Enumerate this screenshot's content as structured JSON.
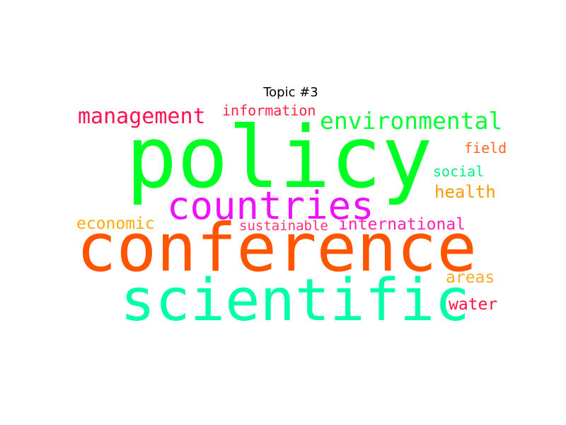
{
  "title": "Topic #3",
  "words": [
    {
      "id": "policy",
      "text": "policy",
      "color": "#00ff22"
    },
    {
      "id": "conference",
      "text": "conference",
      "color": "#ff5500"
    },
    {
      "id": "scientific",
      "text": "scientific",
      "color": "#00ffaa"
    },
    {
      "id": "countries",
      "text": "countries",
      "color": "#ee11ff"
    },
    {
      "id": "environmental",
      "text": "environmental",
      "color": "#00ff33"
    },
    {
      "id": "management",
      "text": "management",
      "color": "#ff1155"
    },
    {
      "id": "information",
      "text": "information",
      "color": "#ff2244"
    },
    {
      "id": "international",
      "text": "international",
      "color": "#ff22aa"
    },
    {
      "id": "sustainable",
      "text": "sustainable",
      "color": "#ff3377"
    },
    {
      "id": "economic",
      "text": "economic",
      "color": "#ffaa00"
    },
    {
      "id": "health",
      "text": "health",
      "color": "#ff9900"
    },
    {
      "id": "field",
      "text": "field",
      "color": "#ff6622"
    },
    {
      "id": "social",
      "text": "social",
      "color": "#00ee88"
    },
    {
      "id": "areas",
      "text": "areas",
      "color": "#ffaa22"
    },
    {
      "id": "water",
      "text": "water",
      "color": "#ff1144"
    }
  ]
}
